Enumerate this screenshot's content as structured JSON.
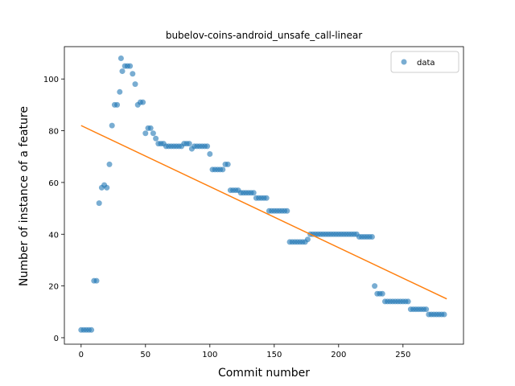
{
  "chart_data": {
    "type": "scatter",
    "title": "bubelov-coins-android_unsafe_call-linear",
    "xlabel": "Commit number",
    "ylabel": "Number of instance of a feature",
    "xlim": [
      -13,
      297
    ],
    "ylim": [
      -2.5,
      112.5
    ],
    "xticks": [
      0,
      50,
      100,
      150,
      200,
      250
    ],
    "yticks": [
      0,
      20,
      40,
      60,
      80,
      100
    ],
    "legend": "upper right",
    "series": [
      {
        "name": "data",
        "color": "#1f77b4",
        "style": "points",
        "x": [
          0,
          2,
          4,
          6,
          8,
          10,
          12,
          14,
          16,
          18,
          20,
          22,
          24,
          26,
          28,
          30,
          31,
          32,
          34,
          36,
          38,
          40,
          42,
          44,
          46,
          48,
          50,
          52,
          54,
          56,
          58,
          60,
          62,
          64,
          66,
          68,
          70,
          72,
          74,
          76,
          78,
          80,
          82,
          84,
          86,
          88,
          90,
          92,
          94,
          96,
          98,
          100,
          102,
          104,
          106,
          108,
          110,
          112,
          114,
          116,
          118,
          120,
          122,
          124,
          126,
          128,
          130,
          132,
          134,
          136,
          138,
          140,
          142,
          144,
          146,
          148,
          150,
          152,
          154,
          156,
          158,
          160,
          162,
          164,
          166,
          168,
          170,
          172,
          174,
          176,
          178,
          180,
          182,
          184,
          186,
          188,
          190,
          192,
          194,
          196,
          198,
          200,
          202,
          204,
          206,
          208,
          210,
          212,
          214,
          216,
          218,
          220,
          222,
          224,
          226,
          228,
          230,
          232,
          234,
          236,
          238,
          240,
          242,
          244,
          246,
          248,
          250,
          252,
          254,
          256,
          258,
          260,
          262,
          264,
          266,
          268,
          270,
          272,
          274,
          276,
          278,
          280,
          282
        ],
        "values": [
          3,
          3,
          3,
          3,
          3,
          22,
          22,
          52,
          58,
          59,
          58,
          67,
          82,
          90,
          90,
          95,
          108,
          103,
          105,
          105,
          105,
          102,
          98,
          90,
          91,
          91,
          79,
          81,
          81,
          79,
          77,
          75,
          75,
          75,
          74,
          74,
          74,
          74,
          74,
          74,
          74,
          75,
          75,
          75,
          73,
          74,
          74,
          74,
          74,
          74,
          74,
          71,
          65,
          65,
          65,
          65,
          65,
          67,
          67,
          57,
          57,
          57,
          57,
          56,
          56,
          56,
          56,
          56,
          56,
          54,
          54,
          54,
          54,
          54,
          49,
          49,
          49,
          49,
          49,
          49,
          49,
          49,
          37,
          37,
          37,
          37,
          37,
          37,
          37,
          38,
          40,
          40,
          40,
          40,
          40,
          40,
          40,
          40,
          40,
          40,
          40,
          40,
          40,
          40,
          40,
          40,
          40,
          40,
          40,
          39,
          39,
          39,
          39,
          39,
          39,
          20,
          17,
          17,
          17,
          14,
          14,
          14,
          14,
          14,
          14,
          14,
          14,
          14,
          14,
          11,
          11,
          11,
          11,
          11,
          11,
          11,
          9,
          9,
          9,
          9,
          9,
          9,
          9
        ]
      },
      {
        "color": "#ff7f0e",
        "style": "line",
        "x": [
          0,
          284
        ],
        "values": [
          82,
          15
        ]
      }
    ]
  }
}
